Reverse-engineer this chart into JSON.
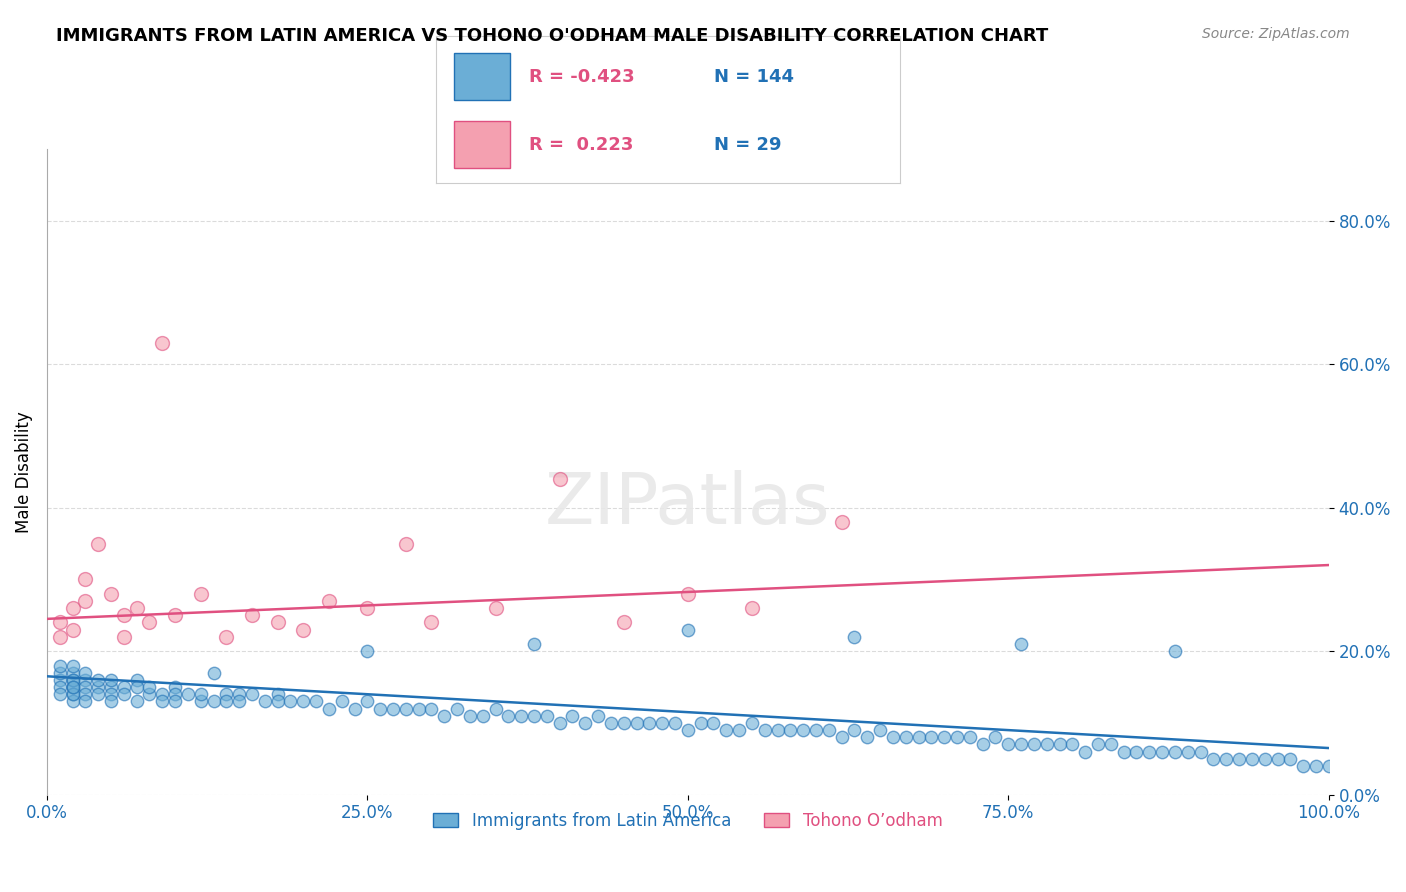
{
  "title": "IMMIGRANTS FROM LATIN AMERICA VS TOHONO O'ODHAM MALE DISABILITY CORRELATION CHART",
  "source_text": "Source: ZipAtlas.com",
  "xlabel": "",
  "ylabel": "Male Disability",
  "legend_label_blue": "Immigrants from Latin America",
  "legend_label_pink": "Tohono O’odham",
  "R_blue": -0.423,
  "N_blue": 144,
  "R_pink": 0.223,
  "N_pink": 29,
  "color_blue": "#6baed6",
  "color_pink": "#f4a0b0",
  "line_color_blue": "#2171b5",
  "line_color_pink": "#e05080",
  "watermark": "ZIPatlas",
  "xlim": [
    0.0,
    1.0
  ],
  "ylim": [
    0.0,
    0.9
  ],
  "yticks": [
    0.0,
    0.2,
    0.4,
    0.6,
    0.8
  ],
  "xticks": [
    0.0,
    0.25,
    0.5,
    0.75,
    1.0
  ],
  "blue_scatter_x": [
    0.01,
    0.01,
    0.01,
    0.01,
    0.01,
    0.02,
    0.02,
    0.02,
    0.02,
    0.02,
    0.02,
    0.02,
    0.02,
    0.02,
    0.02,
    0.03,
    0.03,
    0.03,
    0.03,
    0.03,
    0.04,
    0.04,
    0.04,
    0.05,
    0.05,
    0.05,
    0.05,
    0.06,
    0.06,
    0.07,
    0.07,
    0.07,
    0.08,
    0.08,
    0.09,
    0.09,
    0.1,
    0.1,
    0.1,
    0.11,
    0.12,
    0.12,
    0.13,
    0.14,
    0.14,
    0.15,
    0.15,
    0.16,
    0.17,
    0.18,
    0.18,
    0.19,
    0.2,
    0.21,
    0.22,
    0.23,
    0.24,
    0.25,
    0.26,
    0.27,
    0.28,
    0.29,
    0.3,
    0.31,
    0.32,
    0.33,
    0.34,
    0.35,
    0.36,
    0.37,
    0.38,
    0.39,
    0.4,
    0.41,
    0.42,
    0.43,
    0.44,
    0.45,
    0.46,
    0.47,
    0.48,
    0.49,
    0.5,
    0.51,
    0.52,
    0.53,
    0.54,
    0.55,
    0.56,
    0.57,
    0.58,
    0.59,
    0.6,
    0.61,
    0.62,
    0.63,
    0.64,
    0.65,
    0.66,
    0.67,
    0.68,
    0.69,
    0.7,
    0.71,
    0.72,
    0.73,
    0.74,
    0.75,
    0.76,
    0.77,
    0.78,
    0.79,
    0.8,
    0.81,
    0.82,
    0.83,
    0.84,
    0.85,
    0.86,
    0.87,
    0.88,
    0.89,
    0.9,
    0.91,
    0.92,
    0.93,
    0.94,
    0.95,
    0.96,
    0.97,
    0.98,
    0.99,
    1.0,
    0.88,
    0.76,
    0.63,
    0.5,
    0.38,
    0.25,
    0.13
  ],
  "blue_scatter_y": [
    0.16,
    0.15,
    0.17,
    0.14,
    0.18,
    0.15,
    0.16,
    0.14,
    0.17,
    0.15,
    0.13,
    0.18,
    0.16,
    0.14,
    0.15,
    0.16,
    0.15,
    0.14,
    0.13,
    0.17,
    0.15,
    0.16,
    0.14,
    0.15,
    0.14,
    0.16,
    0.13,
    0.15,
    0.14,
    0.16,
    0.15,
    0.13,
    0.14,
    0.15,
    0.14,
    0.13,
    0.15,
    0.14,
    0.13,
    0.14,
    0.13,
    0.14,
    0.13,
    0.14,
    0.13,
    0.14,
    0.13,
    0.14,
    0.13,
    0.14,
    0.13,
    0.13,
    0.13,
    0.13,
    0.12,
    0.13,
    0.12,
    0.13,
    0.12,
    0.12,
    0.12,
    0.12,
    0.12,
    0.11,
    0.12,
    0.11,
    0.11,
    0.12,
    0.11,
    0.11,
    0.11,
    0.11,
    0.1,
    0.11,
    0.1,
    0.11,
    0.1,
    0.1,
    0.1,
    0.1,
    0.1,
    0.1,
    0.09,
    0.1,
    0.1,
    0.09,
    0.09,
    0.1,
    0.09,
    0.09,
    0.09,
    0.09,
    0.09,
    0.09,
    0.08,
    0.09,
    0.08,
    0.09,
    0.08,
    0.08,
    0.08,
    0.08,
    0.08,
    0.08,
    0.08,
    0.07,
    0.08,
    0.07,
    0.07,
    0.07,
    0.07,
    0.07,
    0.07,
    0.06,
    0.07,
    0.07,
    0.06,
    0.06,
    0.06,
    0.06,
    0.06,
    0.06,
    0.06,
    0.05,
    0.05,
    0.05,
    0.05,
    0.05,
    0.05,
    0.05,
    0.04,
    0.04,
    0.04,
    0.2,
    0.21,
    0.22,
    0.23,
    0.21,
    0.2,
    0.17
  ],
  "pink_scatter_x": [
    0.01,
    0.01,
    0.02,
    0.02,
    0.03,
    0.03,
    0.04,
    0.05,
    0.06,
    0.06,
    0.07,
    0.08,
    0.09,
    0.1,
    0.12,
    0.14,
    0.16,
    0.18,
    0.2,
    0.22,
    0.25,
    0.28,
    0.3,
    0.35,
    0.4,
    0.45,
    0.5,
    0.55,
    0.62
  ],
  "pink_scatter_y": [
    0.24,
    0.22,
    0.26,
    0.23,
    0.27,
    0.3,
    0.35,
    0.28,
    0.25,
    0.22,
    0.26,
    0.24,
    0.63,
    0.25,
    0.28,
    0.22,
    0.25,
    0.24,
    0.23,
    0.27,
    0.26,
    0.35,
    0.24,
    0.26,
    0.44,
    0.24,
    0.28,
    0.26,
    0.38
  ],
  "blue_trendline_x": [
    0.0,
    1.0
  ],
  "blue_trendline_y": [
    0.165,
    0.065
  ],
  "pink_trendline_x": [
    0.0,
    1.0
  ],
  "pink_trendline_y": [
    0.245,
    0.32
  ]
}
